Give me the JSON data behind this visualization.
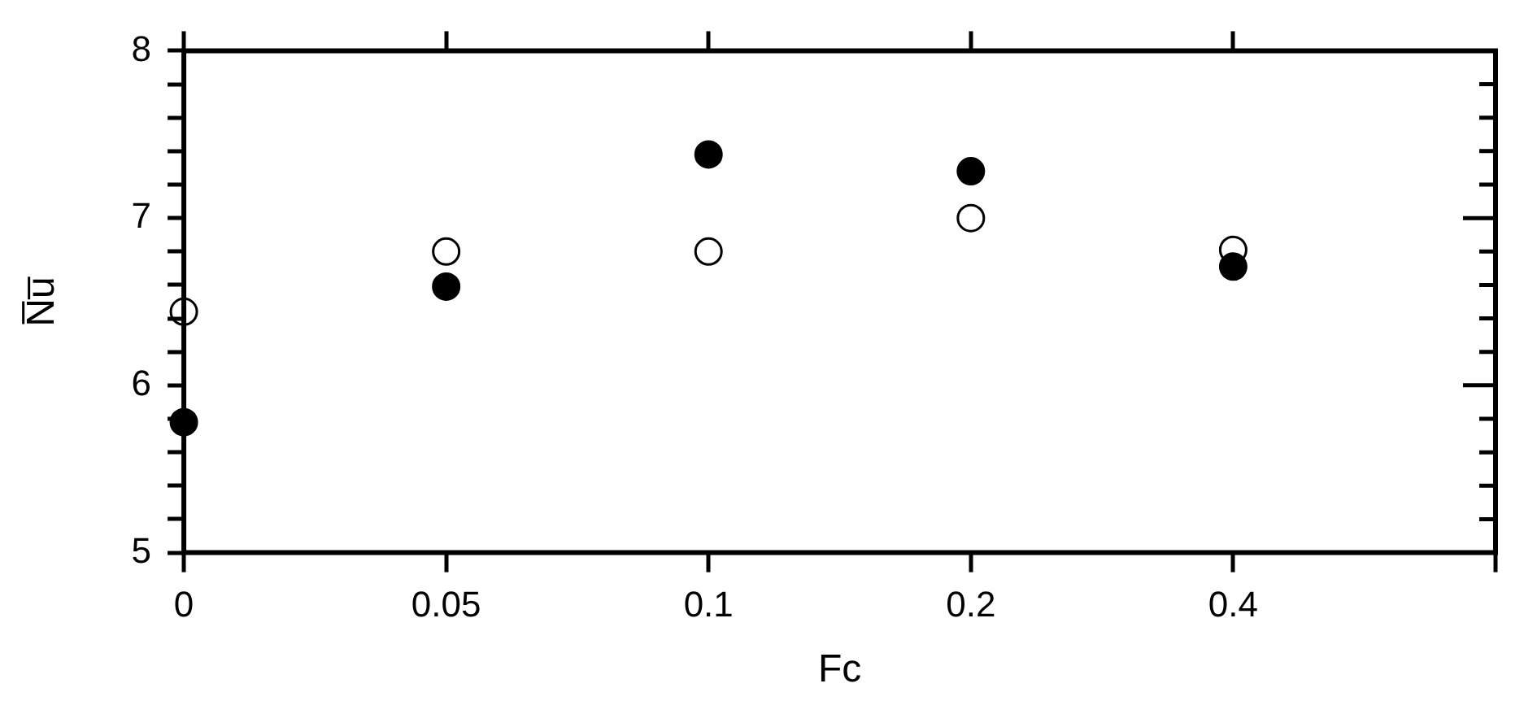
{
  "chart_data": {
    "type": "scatter",
    "xlabel": "Fc",
    "ylabel": "N̅u̅",
    "categories": [
      "0",
      "0.05",
      "0.1",
      "0.2",
      "0.4",
      null
    ],
    "series": [
      {
        "color": "#000000",
        "values": [
          5.78,
          6.59,
          7.38,
          7.28,
          6.71,
          null
        ]
      },
      {
        "color": "#000000",
        "values": [
          6.44,
          6.8,
          6.8,
          7.0,
          6.81,
          null
        ]
      }
    ],
    "ylim": [
      5,
      8
    ],
    "yticks": [
      5,
      {
        "value": 5.2,
        "label": null
      },
      {
        "value": 5.4,
        "label": null
      },
      {
        "value": 5.6,
        "label": null
      },
      {
        "value": 5.8,
        "label": null
      },
      6,
      {
        "value": 6.2,
        "label": null
      },
      {
        "value": 6.4,
        "label": null
      },
      {
        "value": 6.6,
        "label": null
      },
      {
        "value": 6.8,
        "label": null
      },
      7,
      {
        "value": 7.2,
        "label": null
      },
      {
        "value": 7.4,
        "label": null
      },
      {
        "value": 7.6,
        "label": null
      },
      {
        "value": 7.8,
        "label": null
      },
      8
    ],
    "marker": "circle",
    "grid": false,
    "legend": false
  }
}
